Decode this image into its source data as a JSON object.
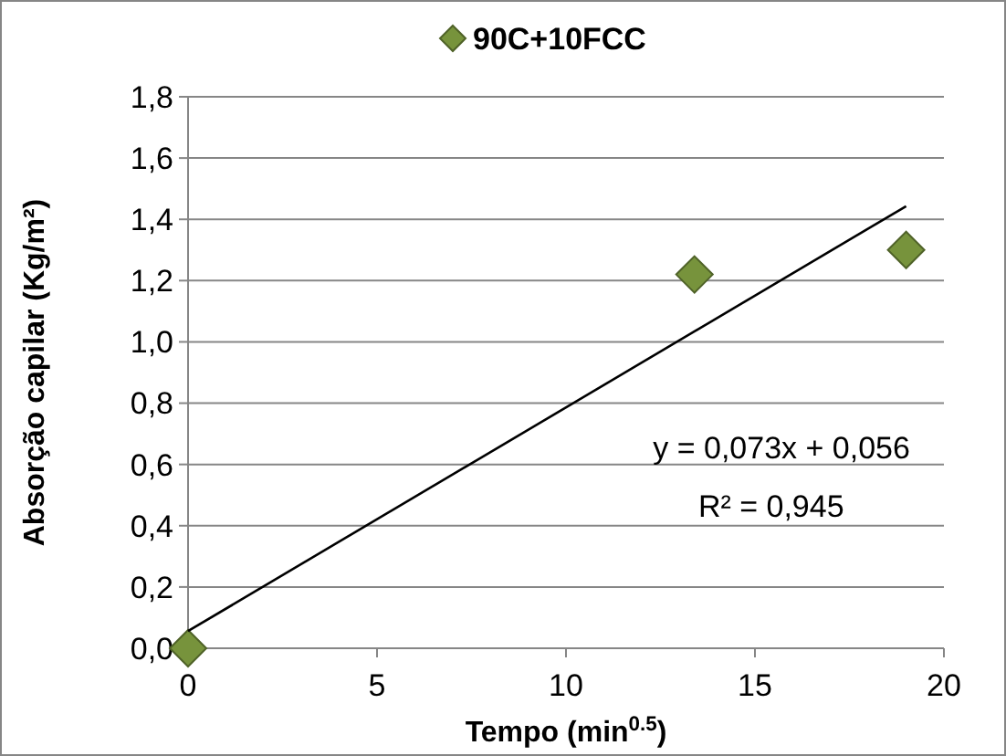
{
  "chart_data": {
    "type": "scatter",
    "xlabel": "Tempo (min$^{0.5}$)",
    "ylabel": "Absorção capilar (Kg/m²)",
    "xlim": [
      0,
      20
    ],
    "xticks": [
      0,
      5,
      10,
      15,
      20
    ],
    "ylim": [
      0,
      1.8
    ],
    "yticks": [
      {
        "value": 0,
        "label": "0,0"
      },
      {
        "value": 0.2,
        "label": "0,2"
      },
      {
        "value": 0.4,
        "label": "0,4"
      },
      {
        "value": 0.6,
        "label": "0,6"
      },
      {
        "value": 0.8,
        "label": "0,8"
      },
      {
        "value": 1.0,
        "label": "1,0"
      },
      {
        "value": 1.2,
        "label": "1,2"
      },
      {
        "value": 1.4,
        "label": "1,4"
      },
      {
        "value": 1.6,
        "label": "1,6"
      },
      {
        "value": 1.8,
        "label": "1,8"
      }
    ],
    "grid": "y",
    "legend": "top",
    "series": [
      {
        "name": "90C+10FCC",
        "type": "scatter",
        "color": "#77933c",
        "marker": "diamond",
        "x": [
          0,
          13.4,
          19
        ],
        "values": [
          0,
          1.22,
          1.3
        ]
      },
      {
        "type": "line",
        "color": "#000000",
        "marker": "none",
        "line_style": "solid",
        "x": [
          0,
          19
        ],
        "values": [
          0.056,
          1.443
        ]
      }
    ],
    "annotations": [
      "y = 0,073x + 0,056",
      "R² = 0,945"
    ]
  }
}
